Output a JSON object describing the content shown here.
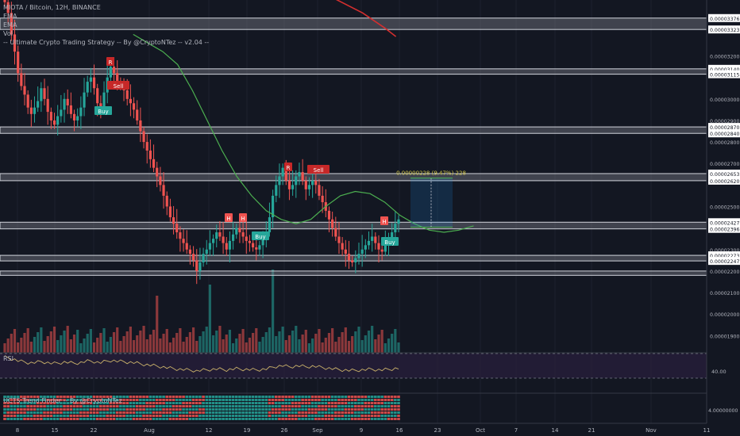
{
  "legend": {
    "symbol_line": "MIOTA / Bitcoin, 12H, BINANCE",
    "ema1": "EMA",
    "ema2": "EMA",
    "vol": "Vol",
    "strategy": "-- Ultimate Crypto Trading Strategy -- By @CryptoNTez -- v2.04 --"
  },
  "rsi_pane": {
    "label": "RSI",
    "level_label": "40.00"
  },
  "trend_pane": {
    "label": "UCTS Trend Finder -- By @CryptoNTez",
    "level_label": "4.00000000"
  },
  "measure_label": "0.00000228 (9.47%) 228",
  "colors": {
    "background": "#131722",
    "up": "#26a69a",
    "down": "#ef5350",
    "ema_fast": "#4caf50",
    "ema_slow": "#d32f2f",
    "rsi": "#c8b06a",
    "zone": "#d1d4dc",
    "measure": "#1e88e5"
  },
  "chart_data": {
    "type": "candlestick",
    "symbol": "MIOTA / Bitcoin",
    "interval": "12H",
    "exchange": "BINANCE",
    "y_ticks": [
      "0.00003376",
      "0.00003323",
      "0.00003200",
      "0.00003140",
      "0.00003115",
      "0.00003000",
      "0.00002900",
      "0.00002870",
      "0.00002840",
      "0.00002800",
      "0.00002700",
      "0.00002653",
      "0.00002620",
      "0.00002500",
      "0.00002427",
      "0.00002396",
      "0.00002300",
      "0.00002273",
      "0.00002247",
      "0.00002200",
      "0.00002100",
      "0.00002000",
      "0.00001900"
    ],
    "x_ticks": [
      "8",
      "15",
      "22",
      "Aug",
      "12",
      "19",
      "26",
      "Sep",
      "9",
      "16",
      "23",
      "Oct",
      "7",
      "14",
      "21",
      "Nov",
      "11"
    ],
    "zones": [
      [
        "0.00003376",
        "0.00003323"
      ],
      [
        "0.00003140",
        "0.00003115"
      ],
      [
        "0.00002870",
        "0.00002840"
      ],
      [
        "0.00002653",
        "0.00002620"
      ],
      [
        "0.00002427",
        "0.00002396"
      ],
      [
        "0.00002273",
        "0.00002247"
      ],
      [
        "0.00002200",
        "0.00002180"
      ]
    ],
    "signals": [
      {
        "label": "R",
        "type": "resistance",
        "date": "Jul 24"
      },
      {
        "label": "Sell",
        "type": "sell",
        "date": "Jul 25"
      },
      {
        "label": "Buy",
        "type": "buy",
        "date": "Jul 23"
      },
      {
        "label": "H",
        "type": "high",
        "date": "Aug 13"
      },
      {
        "label": "H",
        "type": "high",
        "date": "Aug 21"
      },
      {
        "label": "Buy",
        "type": "buy",
        "date": "Aug 21"
      },
      {
        "label": "R",
        "type": "resistance",
        "date": "Aug 27"
      },
      {
        "label": "Sell",
        "type": "sell",
        "date": "Aug 31"
      },
      {
        "label": "H",
        "type": "high",
        "date": "Sep 13"
      },
      {
        "label": "Buy",
        "type": "buy",
        "date": "Sep 13"
      }
    ],
    "closes": [
      3.45,
      3.4,
      3.3,
      3.22,
      3.12,
      3.06,
      3.02,
      2.96,
      2.93,
      2.96,
      2.99,
      3.05,
      3.0,
      2.94,
      2.9,
      2.88,
      2.92,
      2.95,
      3.0,
      2.97,
      2.93,
      2.9,
      2.92,
      2.96,
      3.03,
      3.08,
      3.1,
      3.05,
      2.98,
      2.95,
      3.03,
      3.1,
      3.15,
      3.12,
      3.08,
      3.06,
      3.04,
      3.0,
      2.98,
      2.95,
      2.9,
      2.85,
      2.8,
      2.76,
      2.72,
      2.68,
      2.64,
      2.6,
      2.55,
      2.5,
      2.45,
      2.42,
      2.38,
      2.35,
      2.33,
      2.3,
      2.28,
      2.25,
      2.2,
      2.24,
      2.28,
      2.3,
      2.33,
      2.35,
      2.38,
      2.36,
      2.33,
      2.3,
      2.34,
      2.37,
      2.4,
      2.38,
      2.36,
      2.34,
      2.33,
      2.31,
      2.3,
      2.32,
      2.35,
      2.38,
      2.45,
      2.55,
      2.6,
      2.64,
      2.68,
      2.62,
      2.58,
      2.6,
      2.64,
      2.66,
      2.62,
      2.58,
      2.6,
      2.62,
      2.6,
      2.55,
      2.52,
      2.48,
      2.44,
      2.4,
      2.36,
      2.33,
      2.3,
      2.28,
      2.25,
      2.24,
      2.26,
      2.28,
      2.3,
      2.32,
      2.34,
      2.36,
      2.33,
      2.3,
      2.29,
      2.32,
      2.35,
      2.38,
      2.42,
      2.44
    ],
    "ema_fast_points": [
      [
        0.18,
        3.3
      ],
      [
        0.2,
        3.26
      ],
      [
        0.22,
        3.22
      ],
      [
        0.24,
        3.16
      ],
      [
        0.26,
        3.04
      ],
      [
        0.28,
        2.9
      ],
      [
        0.3,
        2.76
      ],
      [
        0.32,
        2.64
      ],
      [
        0.34,
        2.55
      ],
      [
        0.36,
        2.48
      ],
      [
        0.38,
        2.44
      ],
      [
        0.4,
        2.42
      ],
      [
        0.42,
        2.44
      ],
      [
        0.44,
        2.5
      ],
      [
        0.46,
        2.55
      ],
      [
        0.48,
        2.57
      ],
      [
        0.5,
        2.56
      ],
      [
        0.52,
        2.52
      ],
      [
        0.54,
        2.46
      ],
      [
        0.56,
        2.42
      ],
      [
        0.58,
        2.39
      ],
      [
        0.6,
        2.38
      ],
      [
        0.62,
        2.39
      ],
      [
        0.64,
        2.41
      ]
    ],
    "ema_slow_points": [
      [
        0.41,
        3.52
      ],
      [
        0.45,
        3.47
      ],
      [
        0.49,
        3.4
      ],
      [
        0.52,
        3.33
      ],
      [
        0.535,
        3.29
      ]
    ],
    "measure": {
      "text": "0.00000228 (9.47%) 228",
      "from": "0.00002404",
      "to": "0.00002632"
    },
    "rsi_level": "40.00",
    "trend_level": "4.00000000"
  }
}
